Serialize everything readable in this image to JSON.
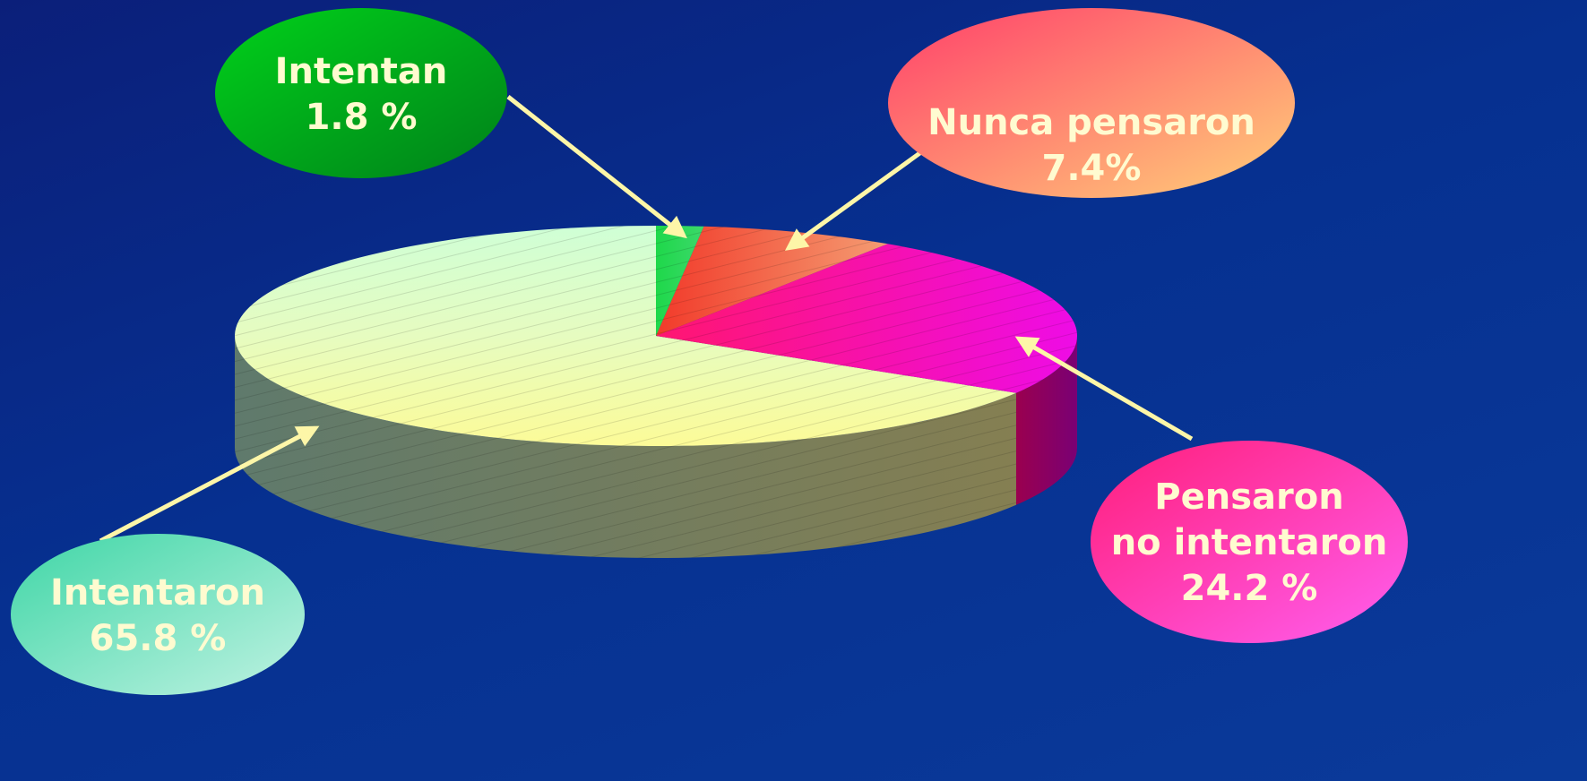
{
  "chart_data": {
    "type": "pie",
    "style": "3d-exploded-callouts",
    "slices": [
      {
        "key": "intentan",
        "label_line1": "Intentan",
        "label_line2": "",
        "value_label": "1.8 %",
        "value": 1.8,
        "color": "#22c93a"
      },
      {
        "key": "nunca",
        "label_line1": "Nunca pensaron",
        "label_line2": "",
        "value_label": "7.4%",
        "value": 7.4,
        "color": "#f25a3c"
      },
      {
        "key": "pensaron",
        "label_line1": "Pensaron",
        "label_line2": "no intentaron",
        "value_label": "24.2 %",
        "value": 24.2,
        "color": "#f0149a"
      },
      {
        "key": "intentaron",
        "label_line1": "Intentaron",
        "label_line2": "",
        "value_label": "65.8 %",
        "value": 65.8,
        "color": "#eef5b8"
      }
    ]
  },
  "colors": {
    "background": "#0a2f8e",
    "arrow": "#fdf6a8",
    "label_text": "#fffbd0"
  }
}
